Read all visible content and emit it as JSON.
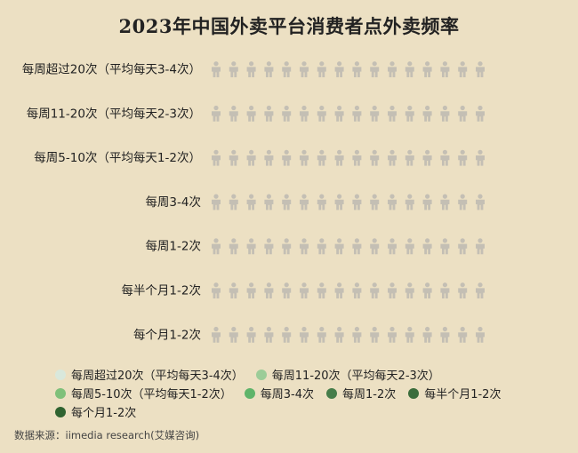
{
  "title": "2023年中国外卖平台消费者点外卖频率",
  "source": "数据来源：iimedia research(艾媒咨询)",
  "icon": "person-icon",
  "colors": {
    "background": "#ece0c3",
    "icon_gray": "#c4bfb4",
    "legend": [
      "#d9e8dc",
      "#9ccc98",
      "#7fc07a",
      "#5fb46a",
      "#467d4a",
      "#3b6d3c",
      "#2f6330"
    ]
  },
  "chart_data": {
    "type": "bar",
    "title": "2023年中国外卖平台消费者点外卖频率",
    "categories": [
      "每周超过20次（平均每天3-4次）",
      "每周11-20次（平均每天2-3次）",
      "每周5-10次（平均每天1-2次）",
      "每周3-4次",
      "每周1-2次",
      "每半个月1-2次",
      "每个月1-2次"
    ],
    "icons_per_row": 16,
    "values": [
      0,
      0,
      0,
      0,
      0,
      0,
      0
    ],
    "legend": [
      "每周超过20次（平均每天3-4次）",
      "每周11-20次（平均每天2-3次）",
      "每周5-10次（平均每天1-2次）",
      "每周3-4次",
      "每周1-2次",
      "每半个月1-2次",
      "每个月1-2次"
    ],
    "legend_placement": "bottom"
  }
}
